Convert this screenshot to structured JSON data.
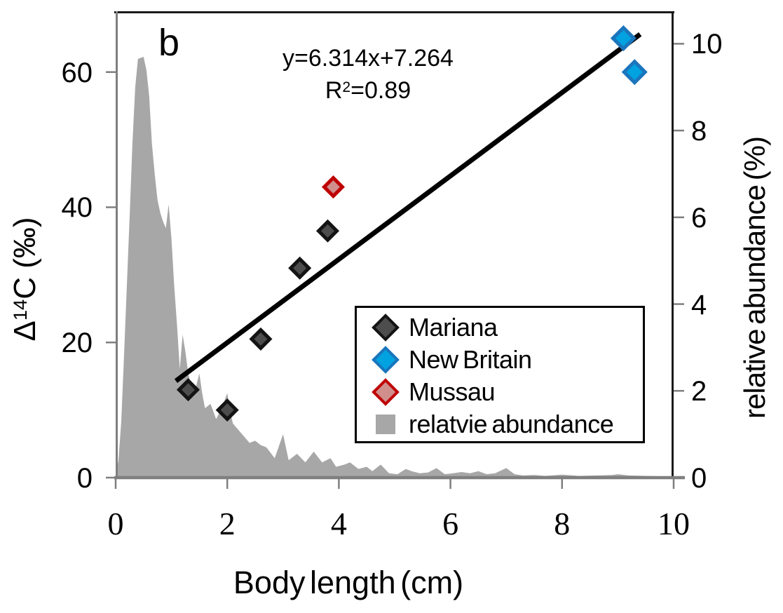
{
  "figure": {
    "background": "#ffffff"
  },
  "chart_data": {
    "type": "combo-scatter-area",
    "title": "",
    "xlabel": "Body length (cm)",
    "ylabel_left": "Δ14C (‰)",
    "ylabel_right": "relative abundance (%)",
    "annotations": {
      "panel_label": "b",
      "equation": "y=6.314x+7.264",
      "r2_base": "R",
      "r2_sup": "2",
      "r2_value": "=0.89"
    },
    "x_axis": {
      "label": "Body length (cm)",
      "range": [
        0,
        10
      ],
      "ticks": [
        0,
        2,
        4,
        6,
        8,
        10
      ]
    },
    "y_axis_left": {
      "label": "Δ14C (‰)",
      "label_delta": "Δ",
      "label_sup": "14",
      "label_rest": "C (‰)",
      "range": [
        0,
        69
      ],
      "ticks": [
        0,
        20,
        40,
        60
      ]
    },
    "y_axis_right": {
      "label": "relative abundance (%)",
      "range": [
        0,
        10.75
      ],
      "ticks": [
        0,
        2,
        4,
        6,
        8,
        10
      ]
    },
    "trend_line": {
      "slope": 6.314,
      "intercept": 7.264,
      "r_squared": 0.89,
      "color": "#000000",
      "width": 7,
      "endpoints": [
        [
          1.08,
          14.3
        ],
        [
          9.4,
          65.6
        ]
      ]
    },
    "series": [
      {
        "name": "Mariana",
        "type": "scatter",
        "marker": "diamond",
        "fill": "#4D4D4D",
        "stroke": "#141414",
        "stroke_width": 5,
        "size": 13,
        "axis": "left",
        "points": [
          [
            1.3,
            13
          ],
          [
            2.0,
            10
          ],
          [
            2.6,
            20.5
          ],
          [
            3.3,
            31
          ],
          [
            3.8,
            36.5
          ]
        ]
      },
      {
        "name": "New Britain",
        "type": "scatter",
        "marker": "diamond",
        "fill": "#00A2E0",
        "stroke": "#1B75BC",
        "stroke_width": 5,
        "size": 15,
        "axis": "left",
        "points": [
          [
            9.1,
            65
          ],
          [
            9.3,
            60
          ]
        ]
      },
      {
        "name": "Mussau",
        "type": "scatter",
        "marker": "diamond",
        "fill": "#D08F8D",
        "stroke": "#BF0000",
        "stroke_width": 5,
        "size": 13,
        "axis": "left",
        "points": [
          [
            3.9,
            43
          ]
        ]
      },
      {
        "name": "relatvie abundance",
        "type": "area",
        "fill": "#A7A7A7",
        "axis": "right",
        "points": [
          [
            0,
            0.05
          ],
          [
            0.05,
            0.4
          ],
          [
            0.1,
            1.3
          ],
          [
            0.15,
            2.8
          ],
          [
            0.2,
            4.4
          ],
          [
            0.25,
            6.0
          ],
          [
            0.3,
            7.7
          ],
          [
            0.35,
            9.0
          ],
          [
            0.4,
            9.65
          ],
          [
            0.5,
            9.7
          ],
          [
            0.55,
            9.4
          ],
          [
            0.6,
            8.8
          ],
          [
            0.65,
            7.7
          ],
          [
            0.7,
            7.0
          ],
          [
            0.75,
            6.4
          ],
          [
            0.8,
            6.1
          ],
          [
            0.85,
            5.9
          ],
          [
            0.9,
            5.75
          ],
          [
            0.95,
            6.3
          ],
          [
            1.0,
            5.5
          ],
          [
            1.05,
            4.4
          ],
          [
            1.1,
            3.5
          ],
          [
            1.15,
            2.5
          ],
          [
            1.2,
            3.3
          ],
          [
            1.25,
            2.9
          ],
          [
            1.3,
            2.4
          ],
          [
            1.4,
            1.9
          ],
          [
            1.45,
            2.15
          ],
          [
            1.5,
            2.4
          ],
          [
            1.55,
            1.95
          ],
          [
            1.6,
            1.6
          ],
          [
            1.7,
            1.7
          ],
          [
            1.8,
            1.35
          ],
          [
            1.9,
            1.6
          ],
          [
            2.0,
            1.95
          ],
          [
            2.05,
            1.55
          ],
          [
            2.1,
            1.25
          ],
          [
            2.2,
            1.1
          ],
          [
            2.3,
            0.95
          ],
          [
            2.4,
            0.8
          ],
          [
            2.5,
            0.85
          ],
          [
            2.6,
            0.75
          ],
          [
            2.7,
            0.7
          ],
          [
            2.85,
            0.45
          ],
          [
            3.0,
            1.0
          ],
          [
            3.1,
            0.4
          ],
          [
            3.25,
            0.55
          ],
          [
            3.4,
            0.35
          ],
          [
            3.55,
            0.6
          ],
          [
            3.7,
            0.35
          ],
          [
            3.85,
            0.45
          ],
          [
            3.95,
            0.25
          ],
          [
            4.1,
            0.3
          ],
          [
            4.2,
            0.35
          ],
          [
            4.35,
            0.2
          ],
          [
            4.5,
            0.25
          ],
          [
            4.6,
            0.15
          ],
          [
            4.75,
            0.3
          ],
          [
            4.9,
            0.1
          ],
          [
            5.05,
            0.08
          ],
          [
            5.2,
            0.2
          ],
          [
            5.3,
            0.15
          ],
          [
            5.45,
            0.1
          ],
          [
            5.6,
            0.12
          ],
          [
            5.75,
            0.22
          ],
          [
            5.9,
            0.08
          ],
          [
            6.05,
            0.1
          ],
          [
            6.2,
            0.13
          ],
          [
            6.35,
            0.1
          ],
          [
            6.5,
            0.15
          ],
          [
            6.65,
            0.08
          ],
          [
            6.8,
            0.1
          ],
          [
            7.0,
            0.22
          ],
          [
            7.15,
            0.08
          ],
          [
            7.3,
            0.05
          ],
          [
            7.5,
            0.06
          ],
          [
            7.7,
            0.04
          ],
          [
            8.0,
            0.07
          ],
          [
            8.3,
            0.04
          ],
          [
            8.6,
            0.05
          ],
          [
            8.9,
            0.06
          ],
          [
            9.0,
            0.08
          ],
          [
            9.2,
            0.05
          ],
          [
            9.5,
            0.04
          ],
          [
            9.8,
            0.03
          ],
          [
            10,
            0.02
          ]
        ]
      }
    ],
    "legend": {
      "position": "inside-right",
      "border_color": "#000000",
      "entries": [
        {
          "label": "Mariana",
          "marker": "diamond",
          "fill": "#4D4D4D",
          "stroke": "#141414"
        },
        {
          "label": "New Britain",
          "marker": "diamond",
          "fill": "#00A2E0",
          "stroke": "#1B75BC"
        },
        {
          "label": "Mussau",
          "marker": "diamond",
          "fill": "#D08F8D",
          "stroke": "#BF0000"
        },
        {
          "label": "relatvie abundance",
          "marker": "square",
          "fill": "#A7A7A7",
          "stroke": "#A7A7A7"
        }
      ]
    },
    "style": {
      "axis_gray": "#7F7F7F",
      "frame_dark": "#1A1A1A",
      "grid": "off"
    }
  }
}
